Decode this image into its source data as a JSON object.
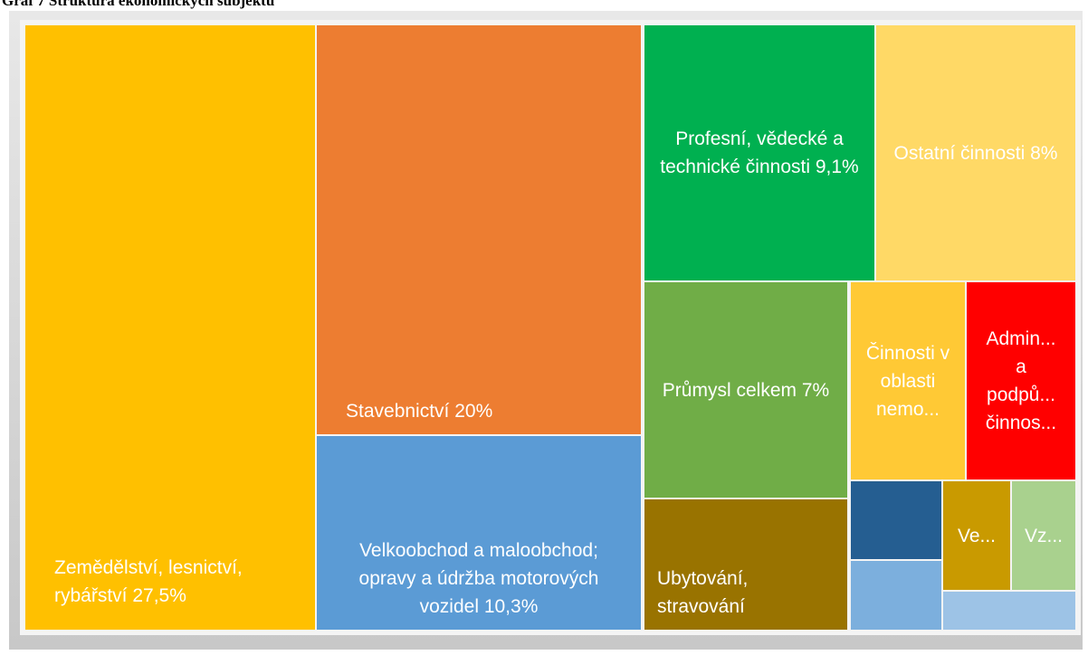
{
  "chart_data": {
    "type": "treemap",
    "title": "Graf 7 Struktura ekonomických subjektů",
    "categories": [
      "Zemědělství, lesnictví, rybářství",
      "Stavebnictví",
      "Velkoobchod a maloobchod; opravy a údržba motorových vozidel",
      "Profesní, vědecké a technické činnosti",
      "Ostatní činnosti",
      "Průmysl celkem",
      "Ubytování, stravování",
      "Činnosti v oblasti nemo...",
      "Admin... a podpů... činnos...",
      null,
      null,
      "Ve...",
      "Vz...",
      null
    ],
    "values": [
      27.5,
      20,
      10.3,
      9.1,
      8,
      7,
      4.1,
      3.5,
      3.4,
      1.1,
      1.0,
      1.1,
      1.1,
      0.8
    ],
    "value_labels": [
      "27,5%",
      "20%",
      "10,3%",
      "9,1%",
      "8%",
      "7%",
      null,
      null,
      null,
      null,
      null,
      null,
      null,
      null
    ],
    "colors": [
      "#ffc000",
      "#ed7d31",
      "#5b9bd5",
      "#00b050",
      "#ffd966",
      "#70ad47",
      "#997300",
      "#ffc935",
      "#ff0000",
      "#255e91",
      "#7cafdd",
      "#c99a00",
      "#a9d18e",
      "#9dc3e6"
    ]
  }
}
